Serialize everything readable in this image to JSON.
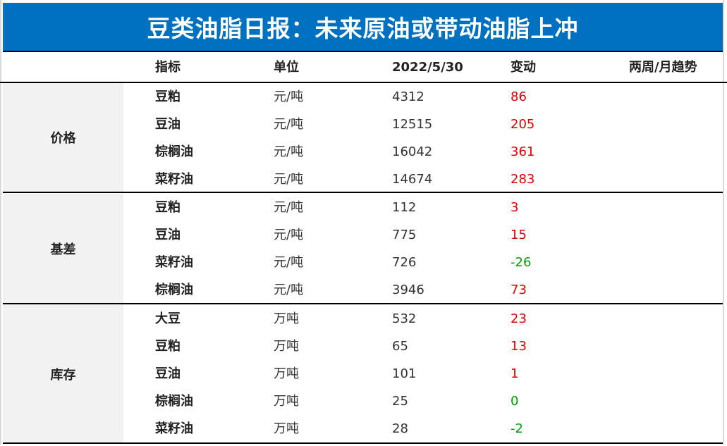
{
  "title": "豆类油脂日报：未来原油或带动油脂上冲",
  "headers": {
    "indicator": "指标",
    "unit": "单位",
    "date": "2022/5/30",
    "change": "变动",
    "trend": "两周/月趋势"
  },
  "sections": [
    {
      "category": "价格",
      "rows": [
        {
          "name": "豆粕",
          "unit": "元/吨",
          "value": "4312",
          "change": "86",
          "direction": "up"
        },
        {
          "name": "豆油",
          "unit": "元/吨",
          "value": "12515",
          "change": "205",
          "direction": "up"
        },
        {
          "name": "棕榈油",
          "unit": "元/吨",
          "value": "16042",
          "change": "361",
          "direction": "up"
        },
        {
          "name": "菜籽油",
          "unit": "元/吨",
          "value": "14674",
          "change": "283",
          "direction": "up"
        }
      ]
    },
    {
      "category": "基差",
      "rows": [
        {
          "name": "豆粕",
          "unit": "元/吨",
          "value": "112",
          "change": "3",
          "direction": "up"
        },
        {
          "name": "豆油",
          "unit": "元/吨",
          "value": "775",
          "change": "15",
          "direction": "up"
        },
        {
          "name": "菜籽油",
          "unit": "元/吨",
          "value": "726",
          "change": "-26",
          "direction": "down"
        },
        {
          "name": "棕榈油",
          "unit": "元/吨",
          "value": "3946",
          "change": "73",
          "direction": "up"
        }
      ]
    },
    {
      "category": "库存",
      "rows": [
        {
          "name": "大豆",
          "unit": "万吨",
          "value": "532",
          "change": "23",
          "direction": "up"
        },
        {
          "name": "豆粕",
          "unit": "万吨",
          "value": "65",
          "change": "13",
          "direction": "up"
        },
        {
          "name": "豆油",
          "unit": "万吨",
          "value": "101",
          "change": "1",
          "direction": "up"
        },
        {
          "name": "棕榈油",
          "unit": "万吨",
          "value": "25",
          "change": "0",
          "direction": "down"
        },
        {
          "name": "菜籽油",
          "unit": "万吨",
          "value": "28",
          "change": "-2",
          "direction": "down"
        }
      ]
    }
  ],
  "colors": {
    "title_bg": "#0070c0",
    "increase": "#e00000",
    "decrease": "#00a000",
    "category_bg": "#f2f2f2"
  }
}
